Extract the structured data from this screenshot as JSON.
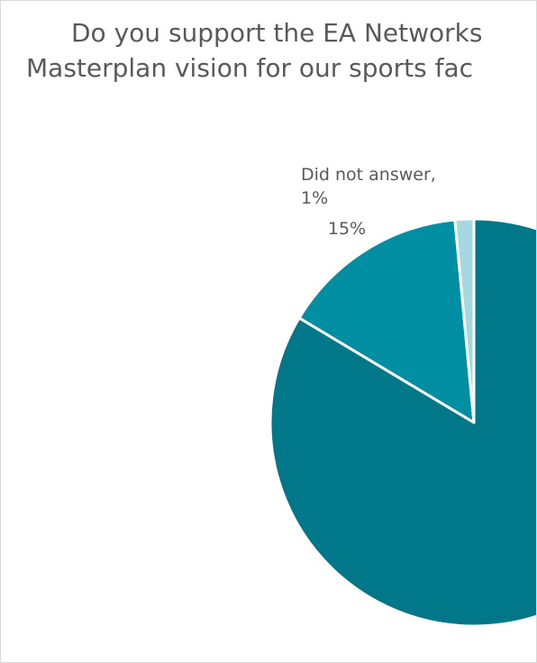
{
  "chart_data": {
    "type": "pie",
    "title_lines": [
      "Do you support the EA Networks",
      "Masterplan vision for our sports fac"
    ],
    "slices": [
      {
        "label": "",
        "value": 84,
        "color": "#00788a",
        "data_label_lines": []
      },
      {
        "label": "",
        "value": 15,
        "color": "#008ea3",
        "data_label_lines": [
          "15%"
        ]
      },
      {
        "label": "Did not answer",
        "value": 1.5,
        "color": "#a6d9df",
        "data_label_lines": [
          "Did not answer,",
          "1%"
        ]
      }
    ],
    "start_angle_deg": 0,
    "direction": "clockwise",
    "slice_border_color": "#ffffff"
  }
}
